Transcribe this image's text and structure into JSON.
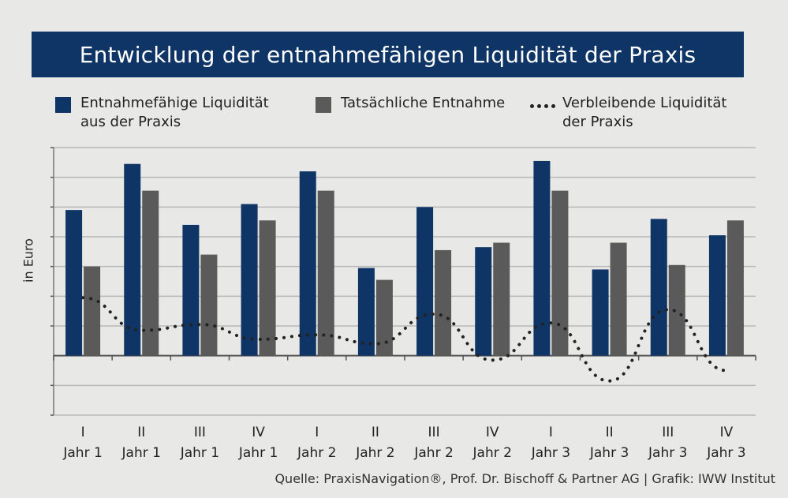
{
  "title": "Entwicklung der entnahmefähigen Liquidität der Praxis",
  "legend": {
    "item1": "Entnahmefähige Liquidität\naus der Praxis",
    "item2": "Tatsächliche Entnahme",
    "item3": "Verbleibende Liquidität\nder Praxis"
  },
  "ylabel": "in Euro",
  "source": "Quelle: PraxisNavigation®, Prof. Dr. Bischoff & Partner AG | Grafik: IWW Institut",
  "colors": {
    "series1": "#0f3566",
    "series2": "#5a5a5a",
    "series3": "#222222",
    "grid": "#b8b8b8",
    "title_bg": "#0f3566"
  },
  "chart_data": {
    "type": "bar",
    "categories": [
      "I|Jahr 1",
      "II|Jahr 1",
      "III|Jahr 1",
      "IV|Jahr 1",
      "I|Jahr 2",
      "II|Jahr 2",
      "III|Jahr 2",
      "IV|Jahr 2",
      "I|Jahr 3",
      "II|Jahr 3",
      "III|Jahr 3",
      "IV|Jahr 3"
    ],
    "ylim": [
      -2,
      7
    ],
    "grid": true,
    "series": [
      {
        "name": "Entnahmefähige Liquidität aus der Praxis",
        "type": "bar",
        "values": [
          4.9,
          6.45,
          4.4,
          5.1,
          6.2,
          2.95,
          5.0,
          3.65,
          6.55,
          2.9,
          4.6,
          4.05
        ]
      },
      {
        "name": "Tatsächliche Entnahme",
        "type": "bar",
        "values": [
          3.0,
          5.55,
          3.4,
          4.55,
          5.55,
          2.55,
          3.55,
          3.8,
          5.55,
          3.8,
          3.05,
          4.55
        ]
      },
      {
        "name": "Verbleibende Liquidität der Praxis",
        "type": "line",
        "style": "dotted",
        "values": [
          1.95,
          0.85,
          1.05,
          0.55,
          0.7,
          0.4,
          1.4,
          -0.15,
          1.1,
          -0.85,
          1.55,
          -0.5
        ]
      }
    ]
  }
}
